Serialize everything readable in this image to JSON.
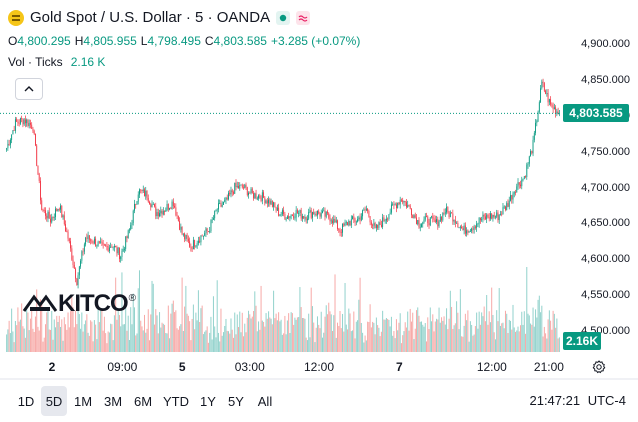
{
  "header": {
    "title": "Gold Spot / U.S. Dollar · 5 · OANDA",
    "ohlc": [
      {
        "key": "O",
        "value": "4,800.295"
      },
      {
        "key": "H",
        "value": "4,805.955"
      },
      {
        "key": "L",
        "value": "4,798.495"
      },
      {
        "key": "C",
        "value": "4,803.585"
      }
    ],
    "change": "+3.285 (+0.07%)",
    "volume_label": "Vol · Ticks",
    "volume_value": "2.16 K"
  },
  "colors": {
    "up": "#089981",
    "down": "#f23645",
    "vol_up": "#92d2cc",
    "vol_down": "#f7a9a7",
    "brand": "#f5c518"
  },
  "chart_data": {
    "type": "candlestick",
    "title": "Gold Spot / U.S. Dollar · 5 · OANDA",
    "y_axis": {
      "ticks": [
        "4,500.000",
        "4,550.000",
        "4,600.000",
        "4,650.000",
        "4,700.000",
        "4,750.000",
        "4,800.000",
        "4,850.000",
        "4,900.000"
      ],
      "ylim": [
        4480,
        4920
      ]
    },
    "x_axis": {
      "ticks": [
        {
          "label": "2",
          "bold": true
        },
        {
          "label": "09:00",
          "bold": false
        },
        {
          "label": "5",
          "bold": true
        },
        {
          "label": "03:00",
          "bold": false
        },
        {
          "label": "12:00",
          "bold": false
        },
        {
          "label": "7",
          "bold": true
        },
        {
          "label": "12:00",
          "bold": false
        },
        {
          "label": "21:00",
          "bold": false
        }
      ]
    },
    "close_series": [
      4755,
      4790,
      4795,
      4785,
      4670,
      4655,
      4675,
      4630,
      4570,
      4630,
      4625,
      4615,
      4620,
      4605,
      4640,
      4695,
      4690,
      4665,
      4670,
      4680,
      4635,
      4618,
      4630,
      4640,
      4670,
      4680,
      4700,
      4700,
      4690,
      4688,
      4680,
      4665,
      4660,
      4665,
      4660,
      4666,
      4662,
      4658,
      4640,
      4652,
      4655,
      4670,
      4640,
      4655,
      4672,
      4685,
      4670,
      4650,
      4655,
      4650,
      4668,
      4658,
      4640,
      4645,
      4655,
      4660,
      4660,
      4675,
      4700,
      4715,
      4760,
      4845,
      4815,
      4803.585
    ],
    "volume_range": [
      0,
      100
    ],
    "last_price": "4,803.585",
    "last_volume": "2.16K"
  },
  "axis_tags": {
    "price": "4,803.585",
    "volume": "2.16K"
  },
  "logo": {
    "text": "KITCO",
    "registered": "®"
  },
  "ranges": [
    "1D",
    "5D",
    "1M",
    "3M",
    "6M",
    "YTD",
    "1Y",
    "5Y",
    "All"
  ],
  "active_range": "5D",
  "footer": {
    "time": "21:47:21",
    "timezone": "UTC-4"
  }
}
